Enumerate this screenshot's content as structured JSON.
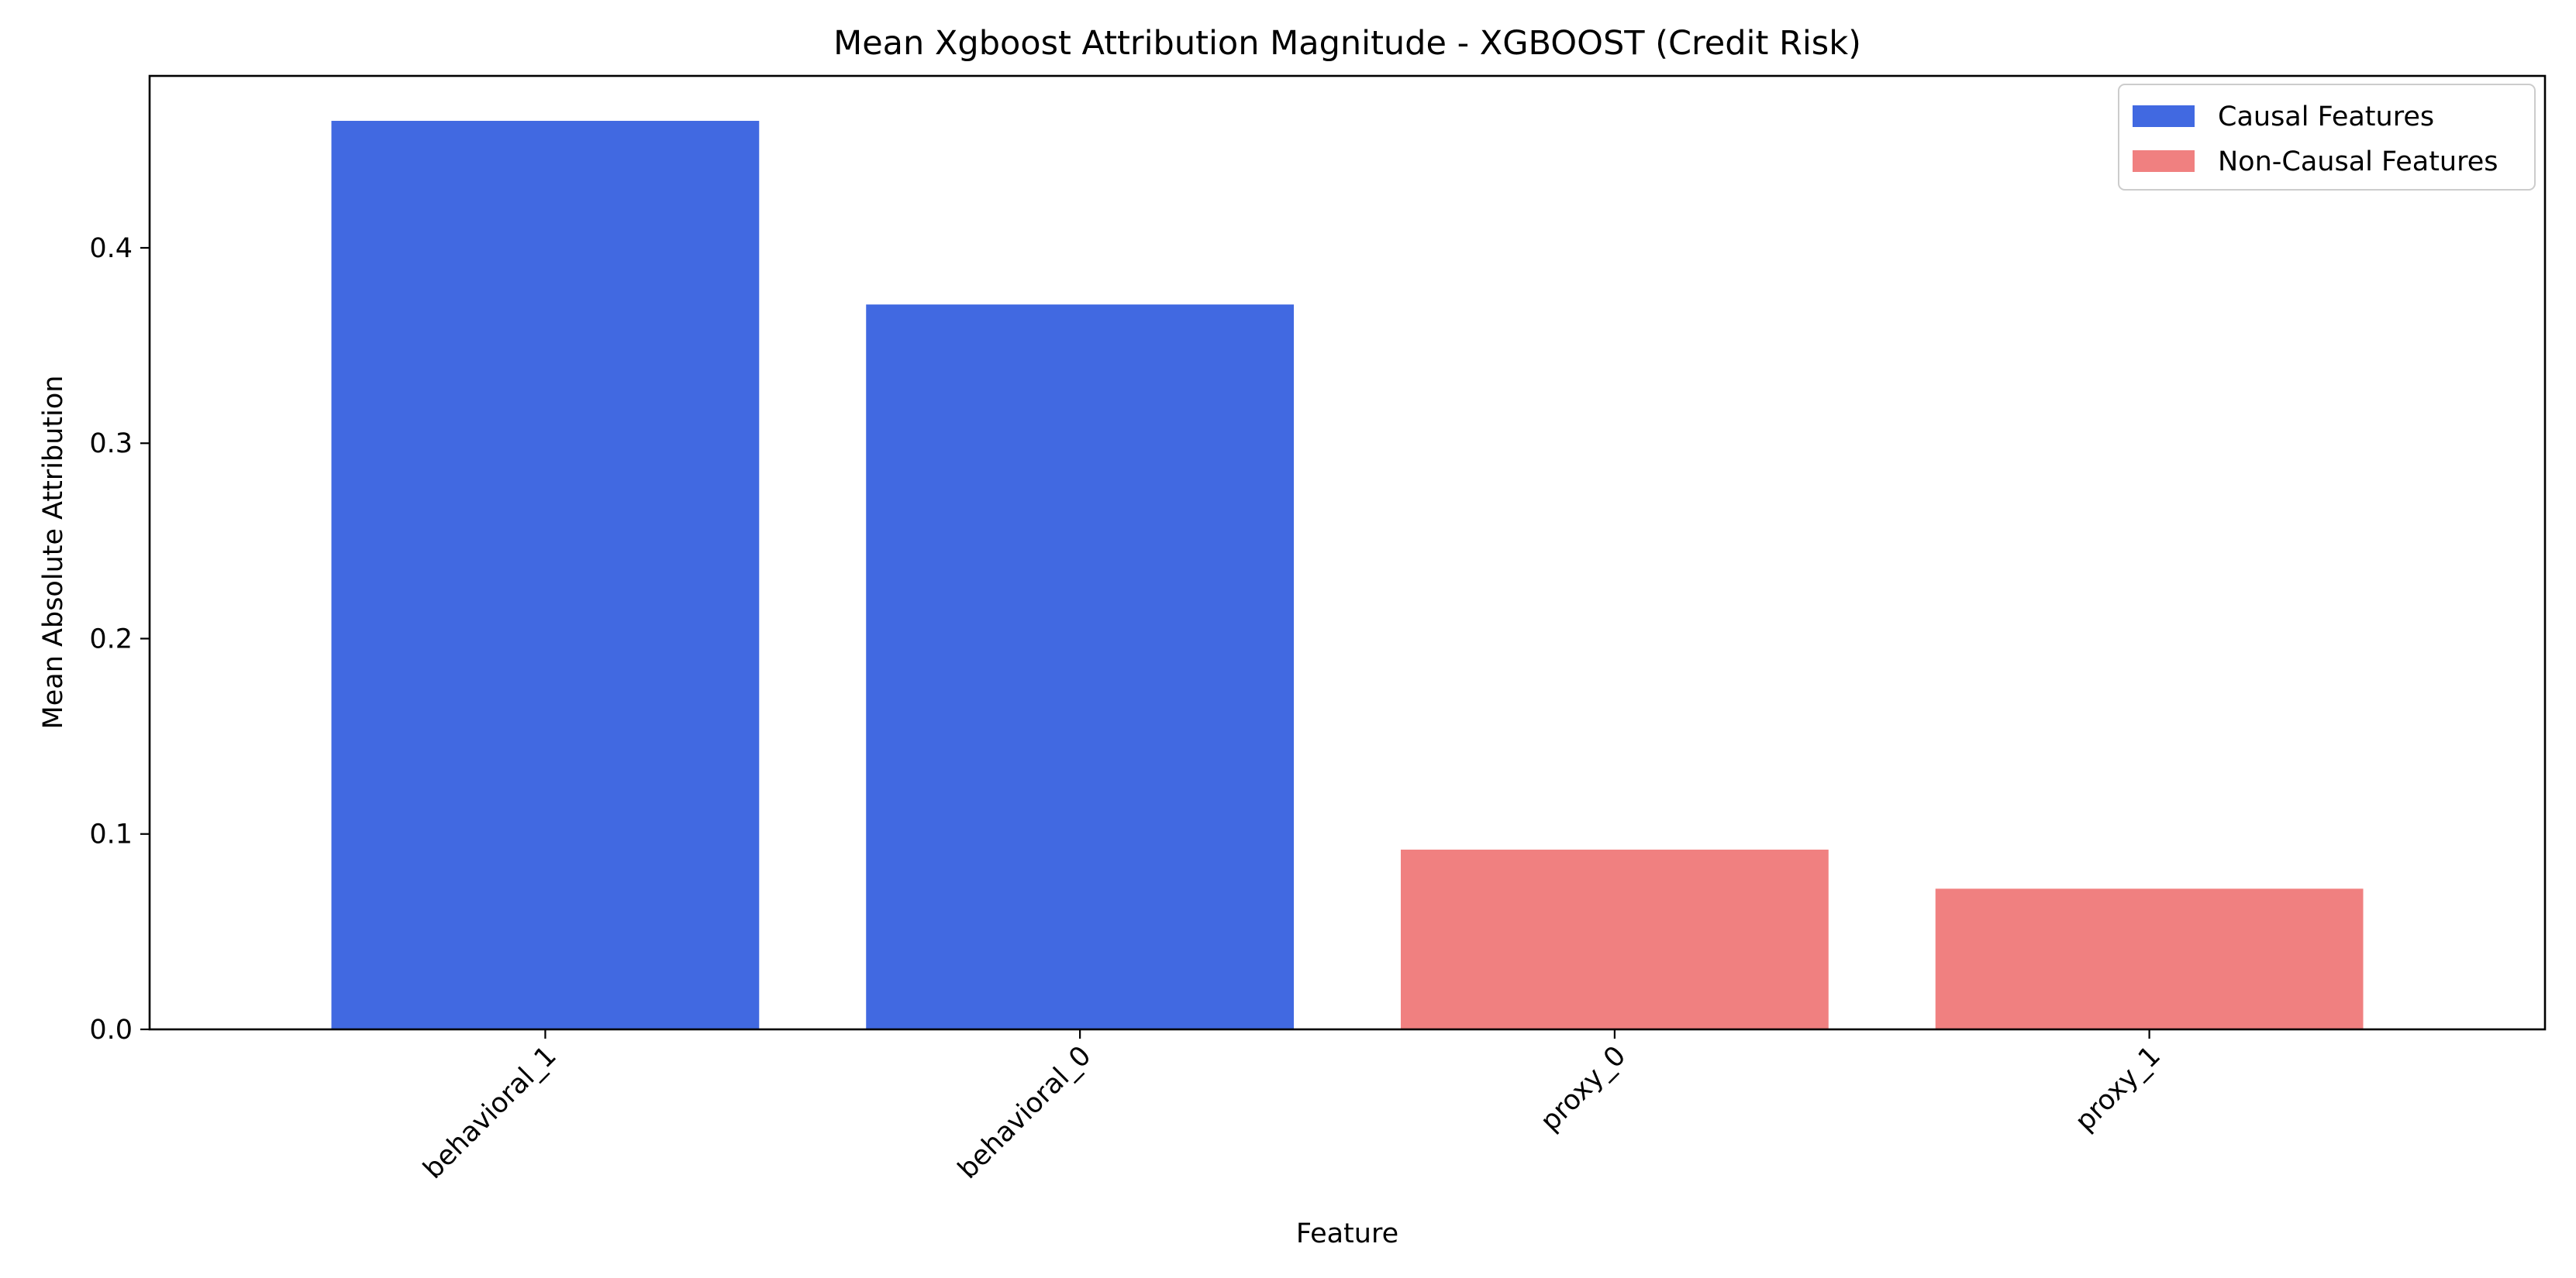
{
  "chart_data": {
    "type": "bar",
    "title": "Mean Xgboost Attribution Magnitude - XGBOOST (Credit Risk)",
    "xlabel": "Feature",
    "ylabel": "Mean Absolute Attribution",
    "categories": [
      "behavioral_1",
      "behavioral_0",
      "proxy_0",
      "proxy_1"
    ],
    "values": [
      0.465,
      0.371,
      0.092,
      0.072
    ],
    "groups": [
      "Causal Features",
      "Causal Features",
      "Non-Causal Features",
      "Non-Causal Features"
    ],
    "ylim": [
      0,
      0.488
    ],
    "yticks": [
      0.0,
      0.1,
      0.2,
      0.3,
      0.4
    ],
    "ytick_labels": [
      "0.0",
      "0.1",
      "0.2",
      "0.3",
      "0.4"
    ],
    "legend": {
      "placement": "top-right",
      "entries": [
        {
          "label": "Causal Features",
          "color": "#4169E1"
        },
        {
          "label": "Non-Causal Features",
          "color": "#F08080"
        }
      ]
    },
    "grid": false,
    "xtick_rotation": 45
  }
}
